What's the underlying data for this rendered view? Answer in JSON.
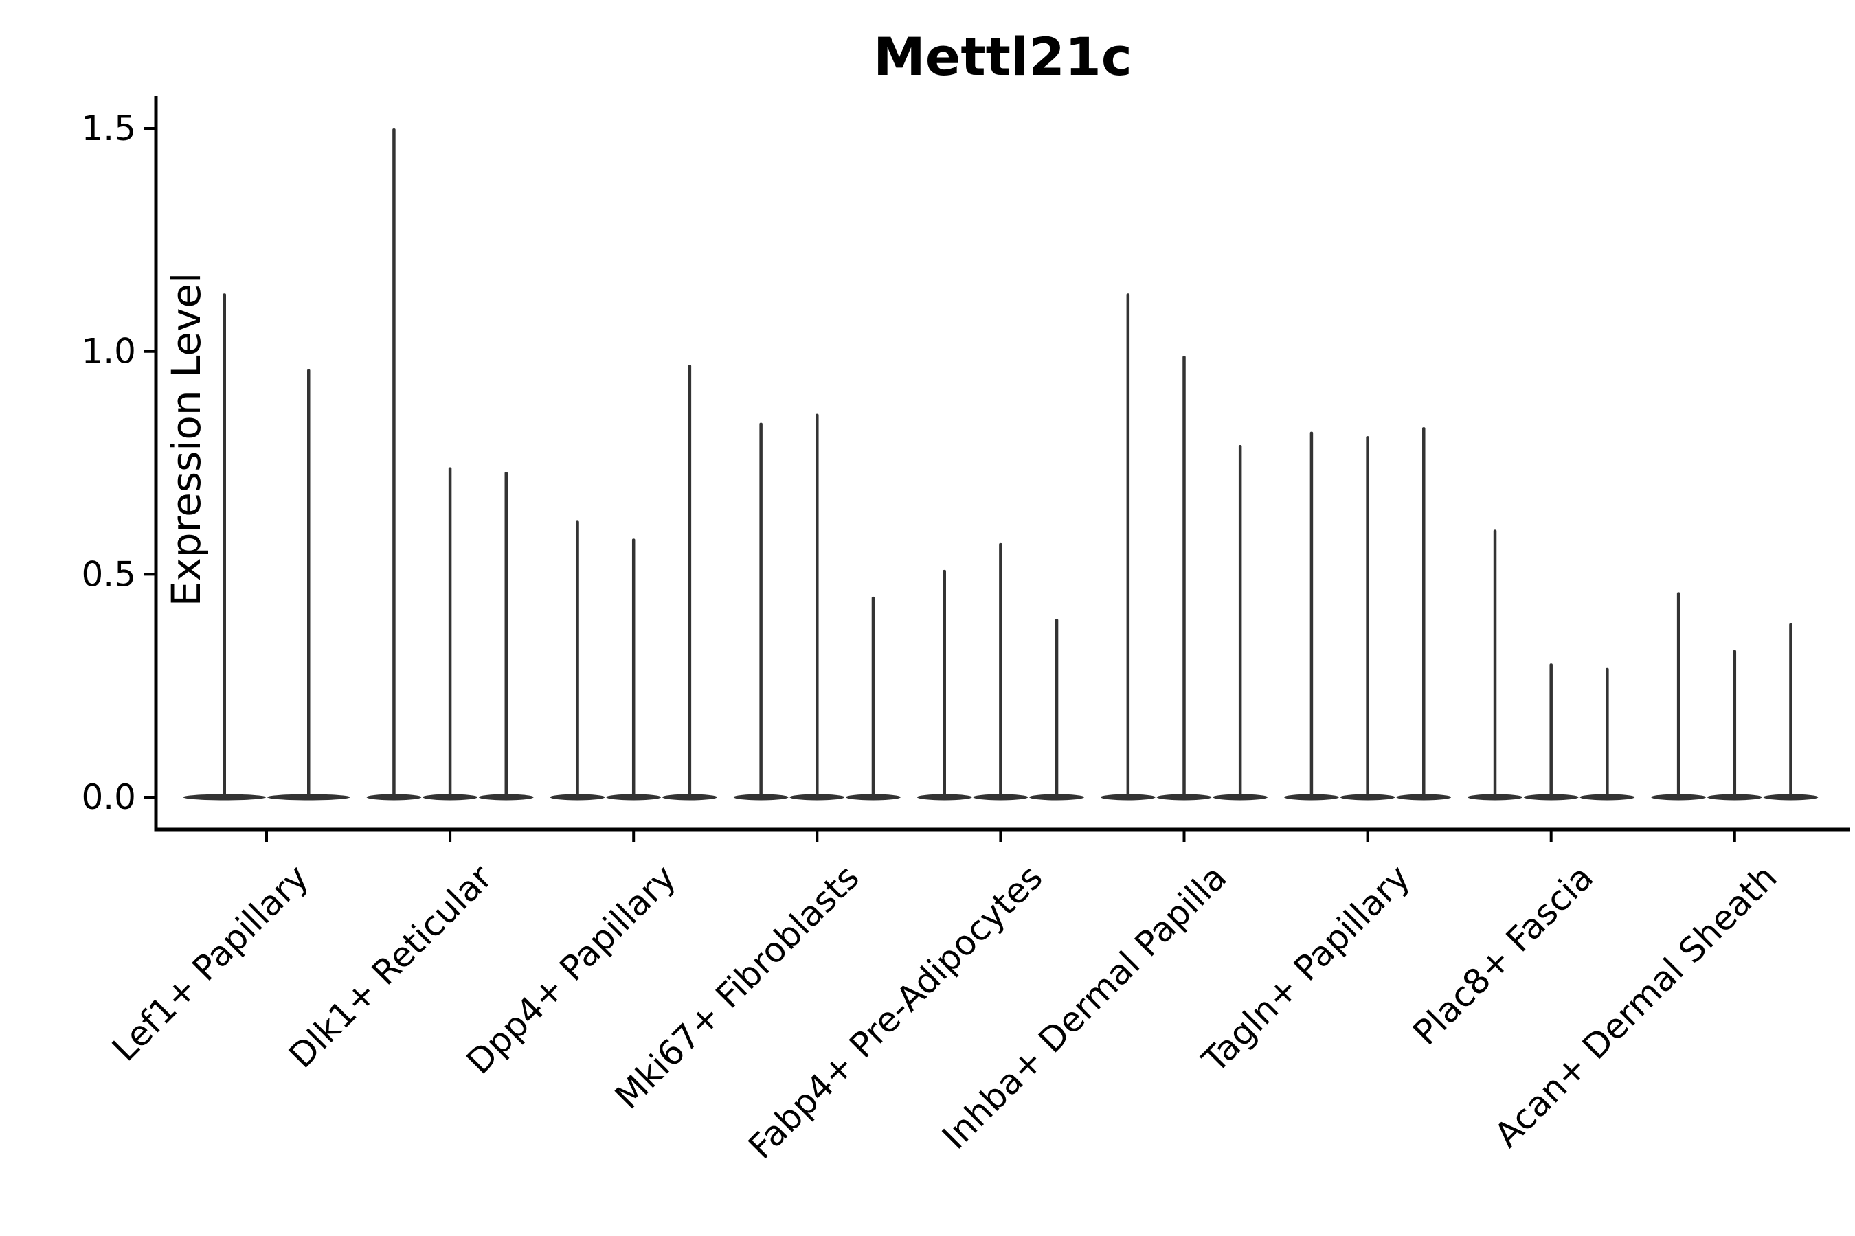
{
  "chart_data": {
    "type": "violin",
    "title": "Mettl21c",
    "xlabel": "",
    "ylabel": "Expression Level",
    "yticks": [
      0.0,
      0.5,
      1.0,
      1.5
    ],
    "ytick_labels": [
      "0.0",
      "0.5",
      "1.0",
      "1.5"
    ],
    "ylim": [
      -0.07,
      1.57
    ],
    "grid": false,
    "legend": null,
    "note": "Needle-thin violins collapsed at 0; values are the top of each violin spike",
    "categories": [
      "Lef1+ Papillary",
      "Dlk1+ Reticular",
      "Dpp4+ Papillary",
      "Mki67+ Fibroblasts",
      "Fabp4+ Pre-Adipocytes",
      "Inhba+ Dermal Papilla",
      "Tagln+ Papillary",
      "Plac8+ Fascia",
      "Acan+ Dermal Sheath"
    ],
    "series": [
      {
        "category": "Lef1+ Papillary",
        "violin_maxima": [
          1.13,
          0.96
        ]
      },
      {
        "category": "Dlk1+ Reticular",
        "violin_maxima": [
          1.5,
          0.74,
          0.73
        ]
      },
      {
        "category": "Dpp4+ Papillary",
        "violin_maxima": [
          0.62,
          0.58,
          0.97
        ]
      },
      {
        "category": "Mki67+ Fibroblasts",
        "violin_maxima": [
          0.84,
          0.86,
          0.45
        ]
      },
      {
        "category": "Fabp4+ Pre-Adipocytes",
        "violin_maxima": [
          0.51,
          0.57,
          0.4
        ]
      },
      {
        "category": "Inhba+ Dermal Papilla",
        "violin_maxima": [
          1.13,
          0.99,
          0.79
        ]
      },
      {
        "category": "Tagln+ Papillary",
        "violin_maxima": [
          0.82,
          0.81,
          0.83
        ]
      },
      {
        "category": "Plac8+ Fascia",
        "violin_maxima": [
          0.6,
          0.3,
          0.29
        ]
      },
      {
        "category": "Acan+ Dermal Sheath",
        "violin_maxima": [
          0.46,
          0.33,
          0.39
        ]
      }
    ],
    "baseline_value": 0.0,
    "colors": {
      "violin": "#333333",
      "axis": "#000000",
      "text": "#000000",
      "background": "#ffffff"
    }
  }
}
